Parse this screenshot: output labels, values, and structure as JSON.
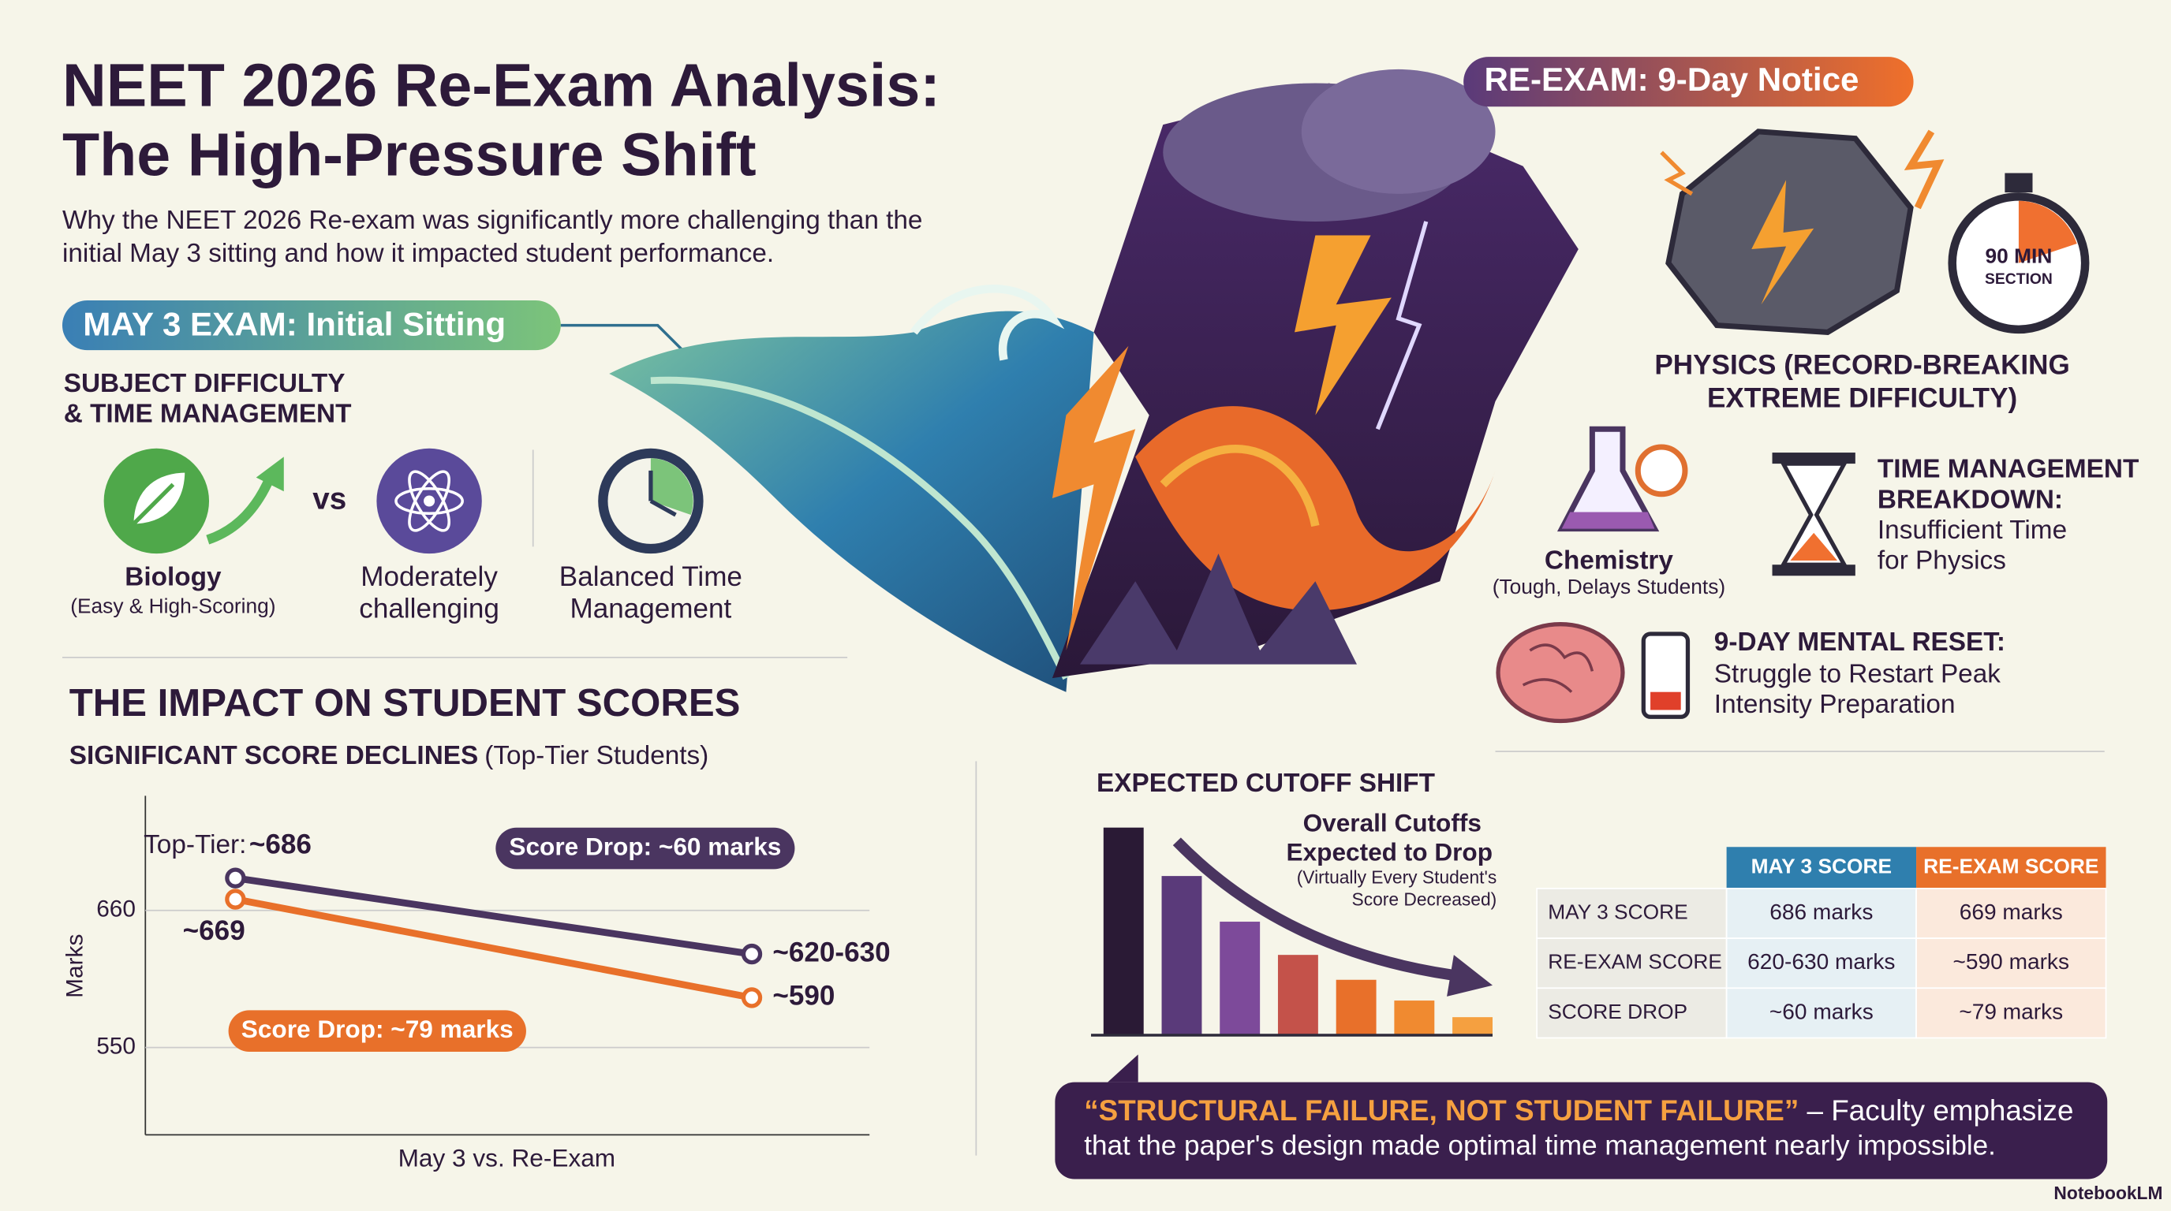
{
  "header": {
    "title": [
      "NEET 2026 Re-Exam Analysis:",
      "The High-Pressure Shift"
    ],
    "subtitle": [
      "Why the NEET 2026 Re-exam was significantly more challenging than the",
      "initial May 3 sitting and how it impacted student performance."
    ]
  },
  "may3": {
    "badge": "MAY 3 EXAM: Initial Sitting",
    "heading": [
      "SUBJECT DIFFICULTY",
      "& TIME MANAGEMENT"
    ],
    "biology": {
      "label": "Biology",
      "sub": "(Easy & High-Scoring)"
    },
    "vs": "vs",
    "moderate": [
      "Moderately",
      "challenging"
    ],
    "time": [
      "Balanced Time",
      "Management"
    ]
  },
  "reexam": {
    "badge": "RE-EXAM: 9-Day Notice",
    "stopwatch": [
      "90 MIN",
      "SECTION"
    ],
    "physics": [
      "PHYSICS (RECORD-BREAKING",
      "EXTREME DIFFICULTY)"
    ],
    "chemistry": {
      "label": "Chemistry",
      "sub": "(Tough, Delays Students)"
    },
    "time": {
      "title": [
        "TIME MANAGEMENT",
        "BREAKDOWN:"
      ],
      "body": [
        "Insufficient Time",
        "for Physics"
      ]
    },
    "reset": {
      "title": "9-DAY MENTAL RESET:",
      "body": [
        "Struggle to Restart Peak",
        "Intensity Preparation"
      ]
    }
  },
  "chart_data": [
    {
      "type": "line",
      "title": "THE IMPACT ON STUDENT SCORES",
      "subtitle": "SIGNIFICANT SCORE DECLINES",
      "subtitle_note": "(Top-Tier Students)",
      "ylabel": "Marks",
      "xlabel": "May 3 vs. Re-Exam",
      "ylim": [
        480,
        752
      ],
      "yticks": [
        550,
        660
      ],
      "grid": true,
      "series": [
        {
          "name": "Top-Tier:",
          "color": "#4a3560",
          "values": [
            686,
            625
          ],
          "value_labels": [
            "~686",
            "~620-630"
          ]
        },
        {
          "color": "#e8702a",
          "values": [
            669,
            590
          ],
          "value_labels": [
            "~669",
            "~590"
          ]
        }
      ],
      "annotations": [
        "Score Drop: ~60 marks",
        "Score Drop: ~79 marks"
      ]
    },
    {
      "type": "bar",
      "title": "EXPECTED CUTOFF SHIFT",
      "ylim": [
        0,
        150
      ],
      "values": [
        150,
        115,
        82,
        58,
        40,
        25,
        13
      ],
      "colors": [
        "#2a1a35",
        "#5a3a7a",
        "#7d4a9a",
        "#c4524a",
        "#e8702a",
        "#f08a30",
        "#f5a040"
      ],
      "annotation": {
        "title": [
          "Overall Cutoffs",
          "Expected to Drop"
        ],
        "note": [
          "(Virtually Every Student's",
          "Score Decreased)"
        ]
      }
    }
  ],
  "table": {
    "header": [
      "MAY 3 SCORE",
      "RE-EXAM SCORE"
    ],
    "rows": [
      {
        "label": "MAY 3 SCORE",
        "cells": [
          "686 marks",
          "669 marks"
        ]
      },
      {
        "label": "RE-EXAM SCORE",
        "cells": [
          "620-630 marks",
          "~590 marks"
        ]
      },
      {
        "label": "SCORE DROP",
        "cells": [
          "~60 marks",
          "~79 marks"
        ]
      }
    ]
  },
  "quote": {
    "emphasis": "“STRUCTURAL FAILURE, NOT STUDENT FAILURE”",
    "lead": " – Faculty emphasize",
    "body": "that the paper's design made optimal time management nearly impossible."
  },
  "brand": "NotebookLM"
}
